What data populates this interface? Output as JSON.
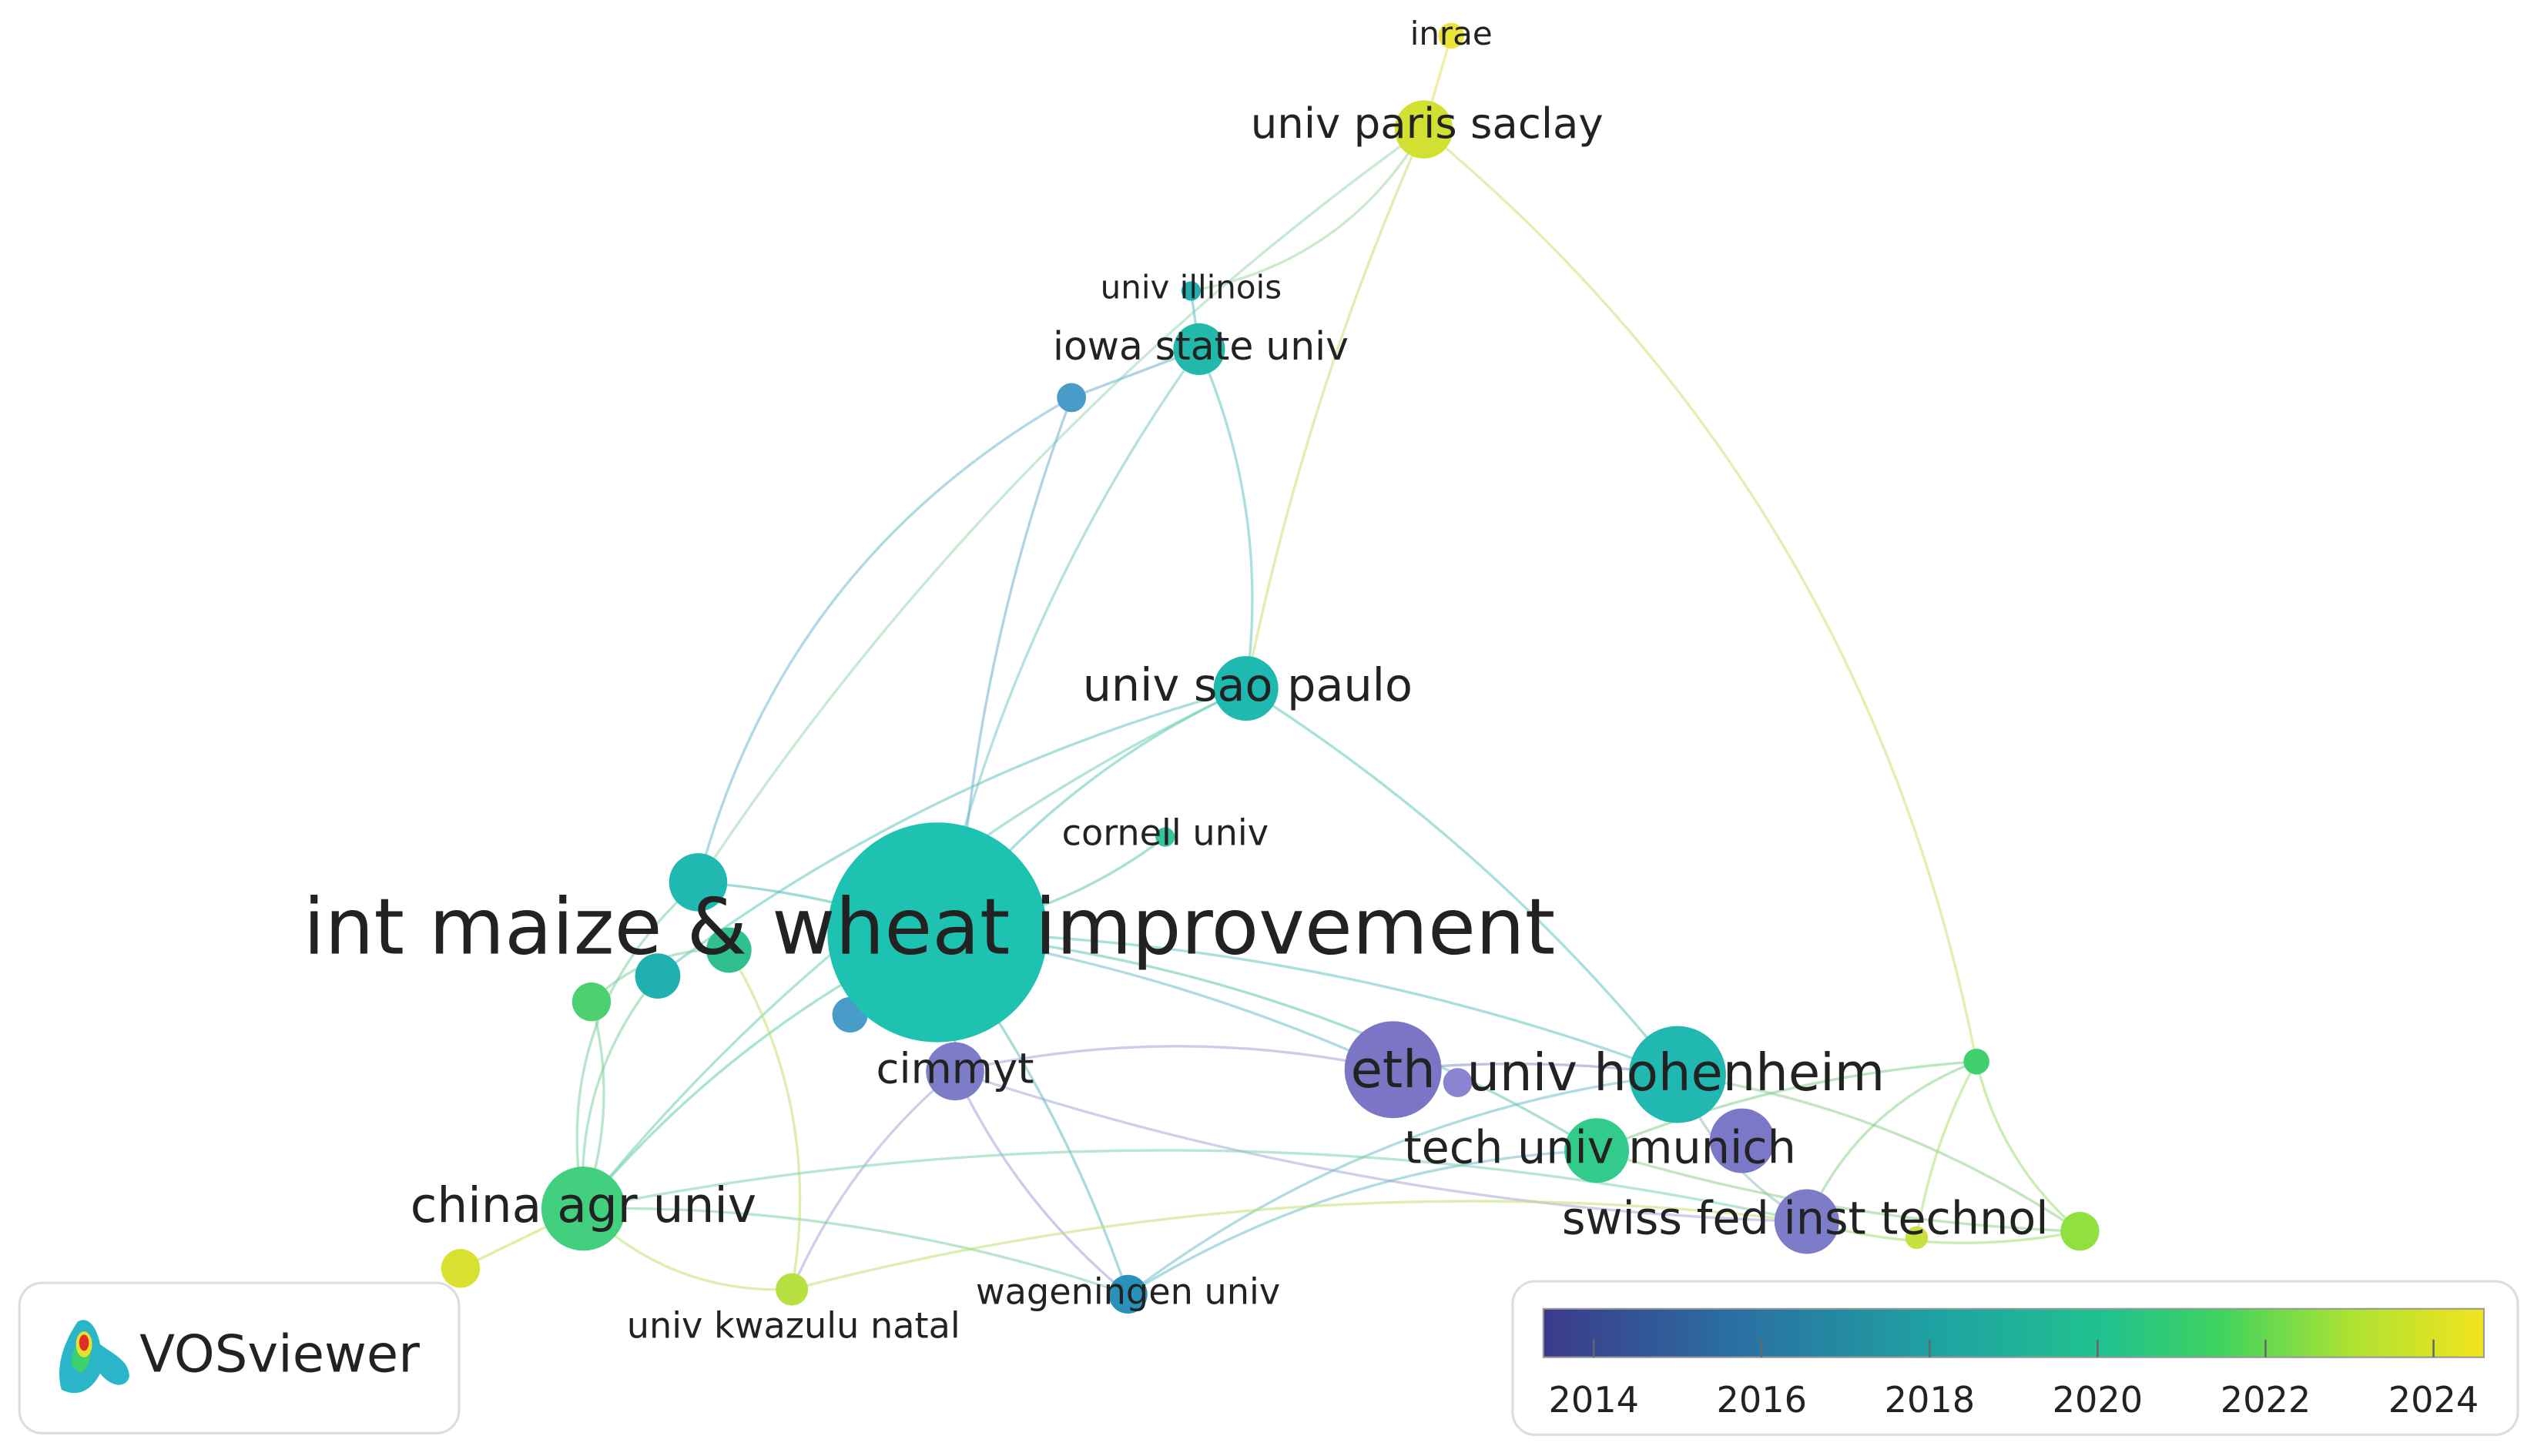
{
  "nodes": [
    {
      "label": "inrae",
      "color": "#ece43a"
    },
    {
      "label": "univ paris saclay",
      "color": "#d2e032"
    },
    {
      "label": "univ illinois",
      "color": "#22aeb0"
    },
    {
      "label": "iowa state univ",
      "color": "#22b9ab"
    },
    {
      "label": "univ sao paulo",
      "color": "#20b9b1"
    },
    {
      "label": "cornell univ",
      "color": "#34c59c"
    },
    {
      "label": "int maize & wheat improvement",
      "color": "#1ec2b0"
    },
    {
      "label": "cimmyt",
      "color": "#7c7cc8"
    },
    {
      "label": "eth",
      "color": "#7c74c4"
    },
    {
      "label": "univ hohenheim",
      "color": "#20b8b0"
    },
    {
      "label": "tech univ munich",
      "color": "#33cb8c"
    },
    {
      "label": "swiss fed inst technol",
      "color": "#7c7cc8"
    },
    {
      "label": "china agr univ",
      "color": "#42d07e"
    },
    {
      "label": "univ kwazulu natal",
      "color": "#b8e040"
    },
    {
      "label": "wageningen univ",
      "color": "#2a92b8"
    }
  ],
  "logo": {
    "text": "VOSviewer"
  },
  "colorbar": {
    "min": 2013.4,
    "max": 2024.6,
    "ticks": [
      2014,
      2016,
      2018,
      2020,
      2022,
      2024
    ]
  }
}
